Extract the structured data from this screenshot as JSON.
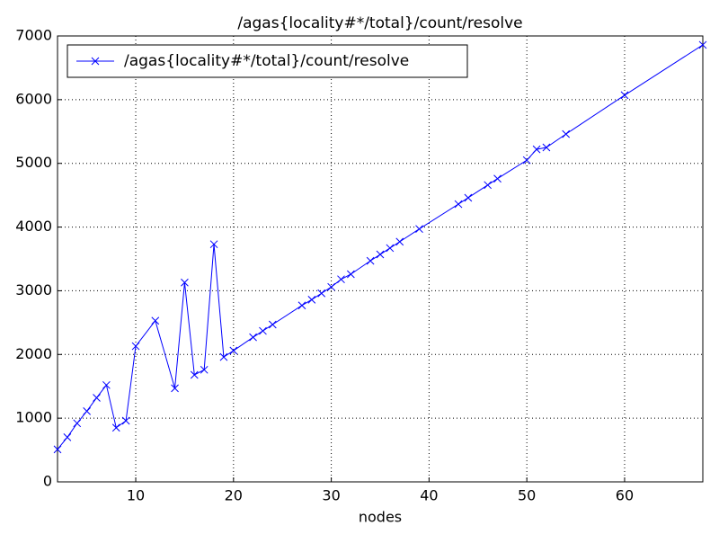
{
  "chart_data": {
    "type": "line",
    "title": "/agas{locality#*/total}/count/resolve",
    "x_label": "nodes",
    "x": [
      2,
      3,
      4,
      5,
      6,
      7,
      8,
      9,
      10,
      12,
      14,
      15,
      16,
      17,
      18,
      19,
      20,
      22,
      23,
      24,
      27,
      28,
      29,
      30,
      31,
      32,
      34,
      35,
      36,
      37,
      39,
      43,
      44,
      46,
      47,
      50,
      51,
      52,
      54,
      60,
      68
    ],
    "series": [
      {
        "name": "/agas{locality#*/total}/count/resolve",
        "color": "#0000ff",
        "values": [
          510,
          700,
          920,
          1110,
          1320,
          1520,
          850,
          960,
          2130,
          2530,
          1470,
          3130,
          1680,
          1760,
          3730,
          1960,
          2060,
          2270,
          2370,
          2470,
          2770,
          2860,
          2960,
          3060,
          3180,
          3260,
          3470,
          3570,
          3670,
          3770,
          3970,
          4360,
          4460,
          4660,
          4760,
          5050,
          5220,
          5250,
          5460,
          6070,
          6860
        ]
      }
    ],
    "xlim": [
      2,
      68
    ],
    "xticks": [
      10,
      20,
      30,
      40,
      50,
      60
    ],
    "ylim": [
      0,
      7000
    ],
    "yticks": [
      0,
      1000,
      2000,
      3000,
      4000,
      5000,
      6000,
      7000
    ],
    "grid": true,
    "legend": "upper left"
  }
}
